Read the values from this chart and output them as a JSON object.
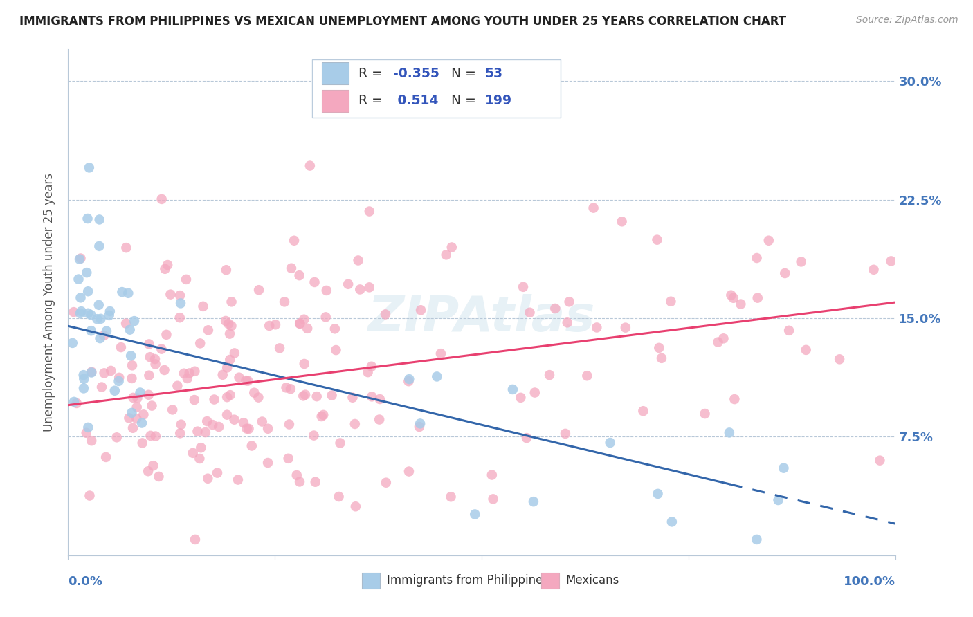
{
  "title": "IMMIGRANTS FROM PHILIPPINES VS MEXICAN UNEMPLOYMENT AMONG YOUTH UNDER 25 YEARS CORRELATION CHART",
  "source": "Source: ZipAtlas.com",
  "ylabel": "Unemployment Among Youth under 25 years",
  "legend_R1": "-0.355",
  "legend_N1": "53",
  "legend_R2": "0.514",
  "legend_N2": "199",
  "color_blue": "#A8CCE8",
  "color_pink": "#F4A8BF",
  "line_color_blue": "#3366AA",
  "line_color_pink": "#E84070",
  "watermark": "ZIPAtlas",
  "background_color": "#FFFFFF",
  "xlim": [
    0.0,
    1.0
  ],
  "ylim": [
    0.0,
    0.32
  ],
  "yticks": [
    0.0,
    0.075,
    0.15,
    0.225,
    0.3
  ],
  "ytick_labels": [
    "",
    "7.5%",
    "15.0%",
    "22.5%",
    "30.0%"
  ],
  "blue_seed": 42,
  "pink_seed": 99,
  "n_blue": 53,
  "n_pink": 199,
  "blue_intercept": 0.145,
  "blue_slope": -0.125,
  "pink_intercept": 0.095,
  "pink_slope": 0.065,
  "blue_noise": 0.038,
  "pink_noise": 0.042
}
